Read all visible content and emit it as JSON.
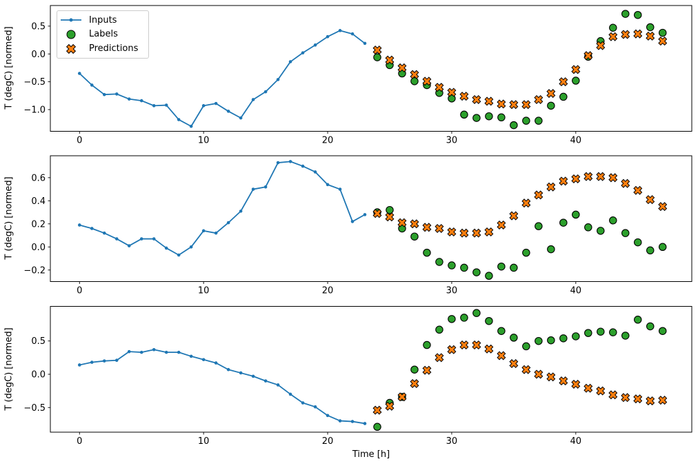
{
  "figure": {
    "kind": "matplotlib-figure",
    "background": "#ffffff",
    "spine_color": "#000000",
    "marker_edge_color": "#000000"
  },
  "chart_data": [
    {
      "type": "line",
      "subplot": 1,
      "title": "",
      "xlabel": "",
      "ylabel": "T (degC) [normed]",
      "xlim": [
        -2.35,
        49.35
      ],
      "ylim": [
        -1.39,
        0.87
      ],
      "xticks": [
        0,
        10,
        20,
        30,
        40
      ],
      "yticks": [
        0.5,
        0.0,
        -0.5,
        -1.0
      ],
      "grid": false,
      "legend": {
        "position": "upper left",
        "entries": [
          "Inputs",
          "Labels",
          "Predictions"
        ]
      },
      "series": [
        {
          "name": "Inputs",
          "type": "line",
          "marker": "dot",
          "color": "#1f77b4",
          "x": [
            0,
            1,
            2,
            3,
            4,
            5,
            6,
            7,
            8,
            9,
            10,
            11,
            12,
            13,
            14,
            15,
            16,
            17,
            18,
            19,
            20,
            21,
            22,
            23
          ],
          "y": [
            -0.35,
            -0.56,
            -0.73,
            -0.72,
            -0.81,
            -0.84,
            -0.93,
            -0.92,
            -1.18,
            -1.3,
            -0.93,
            -0.89,
            -1.03,
            -1.15,
            -0.82,
            -0.68,
            -0.46,
            -0.14,
            0.02,
            0.16,
            0.31,
            0.42,
            0.36,
            0.19
          ]
        },
        {
          "name": "Labels",
          "type": "scatter",
          "marker": "circle",
          "color": "#2ca02c",
          "x": [
            24,
            25,
            26,
            27,
            28,
            29,
            30,
            31,
            32,
            33,
            34,
            35,
            36,
            37,
            38,
            39,
            40,
            41,
            42,
            43,
            44,
            45,
            46,
            47
          ],
          "y": [
            -0.06,
            -0.2,
            -0.35,
            -0.49,
            -0.56,
            -0.7,
            -0.8,
            -1.09,
            -1.15,
            -1.12,
            -1.14,
            -1.28,
            -1.2,
            -1.2,
            -0.93,
            -0.77,
            -0.48,
            -0.05,
            0.23,
            0.47,
            0.72,
            0.7,
            0.48,
            0.38
          ]
        },
        {
          "name": "Predictions",
          "type": "scatter",
          "marker": "X",
          "color": "#ff7f0e",
          "x": [
            24,
            25,
            26,
            27,
            28,
            29,
            30,
            31,
            32,
            33,
            34,
            35,
            36,
            37,
            38,
            39,
            40,
            41,
            42,
            43,
            44,
            45,
            46,
            47
          ],
          "y": [
            0.07,
            -0.11,
            -0.25,
            -0.37,
            -0.49,
            -0.6,
            -0.69,
            -0.76,
            -0.82,
            -0.85,
            -0.9,
            -0.91,
            -0.91,
            -0.82,
            -0.71,
            -0.5,
            -0.28,
            -0.03,
            0.15,
            0.31,
            0.35,
            0.36,
            0.32,
            0.23
          ]
        }
      ]
    },
    {
      "type": "line",
      "subplot": 2,
      "title": "",
      "xlabel": "",
      "ylabel": "T (degC) [normed]",
      "xlim": [
        -2.35,
        49.35
      ],
      "ylim": [
        -0.3,
        0.79
      ],
      "xticks": [
        0,
        10,
        20,
        30,
        40
      ],
      "yticks": [
        0.6,
        0.4,
        0.2,
        0.0,
        -0.2
      ],
      "grid": false,
      "series": [
        {
          "name": "Inputs",
          "type": "line",
          "marker": "dot",
          "color": "#1f77b4",
          "x": [
            0,
            1,
            2,
            3,
            4,
            5,
            6,
            7,
            8,
            9,
            10,
            11,
            12,
            13,
            14,
            15,
            16,
            17,
            18,
            19,
            20,
            21,
            22,
            23
          ],
          "y": [
            0.19,
            0.16,
            0.12,
            0.07,
            0.01,
            0.07,
            0.07,
            -0.01,
            -0.07,
            0.0,
            0.14,
            0.12,
            0.21,
            0.31,
            0.5,
            0.52,
            0.73,
            0.74,
            0.7,
            0.65,
            0.54,
            0.5,
            0.22,
            0.28
          ]
        },
        {
          "name": "Labels",
          "type": "scatter",
          "marker": "circle",
          "color": "#2ca02c",
          "x": [
            24,
            25,
            26,
            27,
            28,
            29,
            30,
            31,
            32,
            33,
            34,
            35,
            36,
            37,
            38,
            39,
            40,
            41,
            42,
            43,
            44,
            45,
            46,
            47
          ],
          "y": [
            0.3,
            0.32,
            0.16,
            0.09,
            -0.05,
            -0.13,
            -0.16,
            -0.18,
            -0.22,
            -0.25,
            -0.17,
            -0.18,
            -0.05,
            0.18,
            -0.02,
            0.21,
            0.28,
            0.17,
            0.14,
            0.23,
            0.12,
            0.04,
            -0.03,
            0.0
          ]
        },
        {
          "name": "Predictions",
          "type": "scatter",
          "marker": "X",
          "color": "#ff7f0e",
          "x": [
            24,
            25,
            26,
            27,
            28,
            29,
            30,
            31,
            32,
            33,
            34,
            35,
            36,
            37,
            38,
            39,
            40,
            41,
            42,
            43,
            44,
            45,
            46,
            47
          ],
          "y": [
            0.29,
            0.26,
            0.21,
            0.2,
            0.17,
            0.16,
            0.13,
            0.12,
            0.12,
            0.13,
            0.19,
            0.27,
            0.38,
            0.45,
            0.52,
            0.57,
            0.59,
            0.61,
            0.61,
            0.6,
            0.55,
            0.49,
            0.41,
            0.35
          ]
        }
      ]
    },
    {
      "type": "line",
      "subplot": 3,
      "title": "",
      "xlabel": "Time [h]",
      "ylabel": "T (degC) [normed]",
      "xlim": [
        -2.35,
        49.35
      ],
      "ylim": [
        -0.87,
        1.02
      ],
      "xticks": [
        0,
        10,
        20,
        30,
        40
      ],
      "yticks": [
        0.5,
        0.0,
        -0.5
      ],
      "grid": false,
      "series": [
        {
          "name": "Inputs",
          "type": "line",
          "marker": "dot",
          "color": "#1f77b4",
          "x": [
            0,
            1,
            2,
            3,
            4,
            5,
            6,
            7,
            8,
            9,
            10,
            11,
            12,
            13,
            14,
            15,
            16,
            17,
            18,
            19,
            20,
            21,
            22,
            23
          ],
          "y": [
            0.14,
            0.18,
            0.2,
            0.21,
            0.34,
            0.33,
            0.37,
            0.33,
            0.33,
            0.27,
            0.22,
            0.17,
            0.07,
            0.02,
            -0.03,
            -0.1,
            -0.16,
            -0.3,
            -0.43,
            -0.49,
            -0.62,
            -0.7,
            -0.71,
            -0.74
          ]
        },
        {
          "name": "Labels",
          "type": "scatter",
          "marker": "circle",
          "color": "#2ca02c",
          "x": [
            24,
            25,
            26,
            27,
            28,
            29,
            30,
            31,
            32,
            33,
            34,
            35,
            36,
            37,
            38,
            39,
            40,
            41,
            42,
            43,
            44,
            45,
            46,
            47
          ],
          "y": [
            -0.79,
            -0.43,
            -0.34,
            0.07,
            0.44,
            0.67,
            0.83,
            0.85,
            0.92,
            0.8,
            0.65,
            0.55,
            0.42,
            0.5,
            0.51,
            0.54,
            0.57,
            0.62,
            0.64,
            0.63,
            0.58,
            0.82,
            0.72,
            0.65
          ]
        },
        {
          "name": "Predictions",
          "type": "scatter",
          "marker": "X",
          "color": "#ff7f0e",
          "x": [
            24,
            25,
            26,
            27,
            28,
            29,
            30,
            31,
            32,
            33,
            34,
            35,
            36,
            37,
            38,
            39,
            40,
            41,
            42,
            43,
            44,
            45,
            46,
            47
          ],
          "y": [
            -0.54,
            -0.48,
            -0.34,
            -0.14,
            0.06,
            0.25,
            0.37,
            0.44,
            0.44,
            0.38,
            0.28,
            0.16,
            0.07,
            0.0,
            -0.04,
            -0.1,
            -0.15,
            -0.21,
            -0.25,
            -0.31,
            -0.35,
            -0.37,
            -0.4,
            -0.39
          ]
        }
      ]
    }
  ]
}
